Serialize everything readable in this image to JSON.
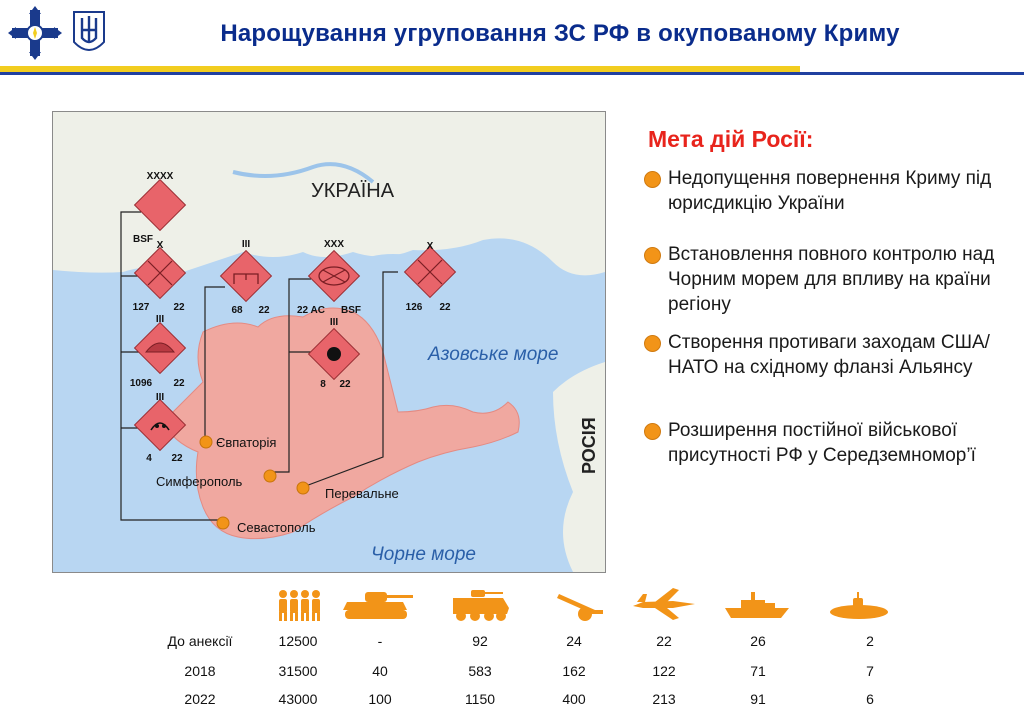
{
  "header": {
    "title": "Нарощування угруповання ЗС РФ в окупованому Криму"
  },
  "map": {
    "country_label": "УКРАЇНА",
    "russia_label": "РОСІЯ",
    "azov_label": "Азовське море",
    "black_sea_label": "Чорне море",
    "cities": [
      "Євпаторія",
      "Симферополь",
      "Перевальне",
      "Севастополь"
    ],
    "units": [
      {
        "echelon": "XXXX",
        "left": "",
        "right": "BSF",
        "symbol": "empty"
      },
      {
        "echelon": "X",
        "left": "127",
        "right": "22",
        "symbol": "cross"
      },
      {
        "echelon": "III",
        "left": "1096",
        "right": "22",
        "symbol": "arc"
      },
      {
        "echelon": "III",
        "left": "4",
        "right": "22",
        "symbol": "arc-arrows"
      },
      {
        "echelon": "III",
        "left": "68",
        "right": "22",
        "symbol": "bracket"
      },
      {
        "echelon": "XXX",
        "left": "22 AC",
        "right": "BSF",
        "symbol": "oval-cross"
      },
      {
        "echelon": "III",
        "left": "8",
        "right": "22",
        "symbol": "dot"
      },
      {
        "echelon": "X",
        "left": "126",
        "right": "22",
        "symbol": "cross"
      }
    ],
    "colors": {
      "sea": "#b8d6f2",
      "land": "#eef0e8",
      "crimea": "#f0a8a0",
      "unit_fill": "#e8646a",
      "city_dot": "#f29418"
    }
  },
  "goals": {
    "title": "Мета дій Росії:",
    "items": [
      "Недопущення повернення Криму під юрисдикцію України",
      "Встановлення повного контролю над Чорним морем для впливу на країни регіону",
      "Створення противаги заходам США/НАТО на східному фланзі Альянсу",
      "Розширення постійної військової присутності РФ у Середземномор’ї"
    ]
  },
  "stats": {
    "icons": [
      "personnel-icon",
      "tank-icon",
      "armored-vehicle-icon",
      "artillery-icon",
      "aircraft-icon",
      "warship-icon",
      "submarine-icon"
    ],
    "rows": [
      {
        "label": "До анексії",
        "values": [
          "12500",
          "-",
          "92",
          "24",
          "22",
          "26",
          "2"
        ]
      },
      {
        "label": "2018",
        "values": [
          "31500",
          "40",
          "583",
          "162",
          "122",
          "71",
          "7"
        ]
      },
      {
        "label": "2022",
        "values": [
          "43000",
          "100",
          "1150",
          "400",
          "213",
          "91",
          "6"
        ]
      }
    ]
  }
}
